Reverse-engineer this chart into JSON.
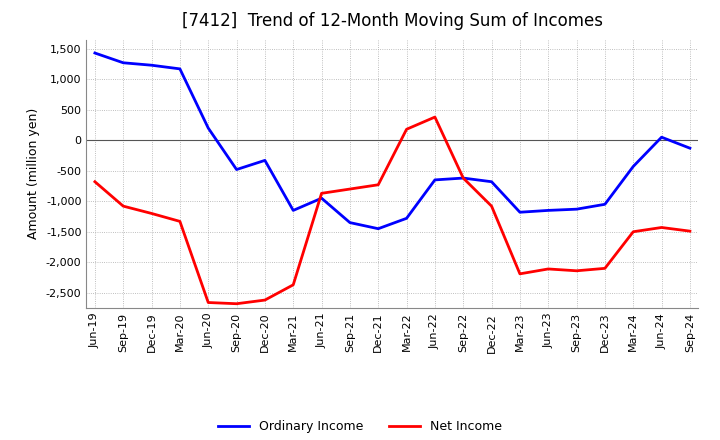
{
  "title": "[7412]  Trend of 12-Month Moving Sum of Incomes",
  "ylabel": "Amount (million yen)",
  "ylim": [
    -2750,
    1650
  ],
  "yticks": [
    -2500,
    -2000,
    -1500,
    -1000,
    -500,
    0,
    500,
    1000,
    1500
  ],
  "x_labels": [
    "Jun-19",
    "Sep-19",
    "Dec-19",
    "Mar-20",
    "Jun-20",
    "Sep-20",
    "Dec-20",
    "Mar-21",
    "Jun-21",
    "Sep-21",
    "Dec-21",
    "Mar-22",
    "Jun-22",
    "Sep-22",
    "Dec-22",
    "Mar-23",
    "Jun-23",
    "Sep-23",
    "Dec-23",
    "Mar-24",
    "Jun-24",
    "Sep-24"
  ],
  "ordinary_income": [
    1430,
    1270,
    1230,
    1170,
    200,
    -480,
    -330,
    -1150,
    -950,
    -1350,
    -1450,
    -1280,
    -650,
    -620,
    -680,
    -1180,
    -1150,
    -1130,
    -1050,
    -430,
    50,
    -130
  ],
  "net_income": [
    -680,
    -1080,
    -1200,
    -1330,
    -2660,
    -2680,
    -2620,
    -2370,
    -870,
    -800,
    -730,
    180,
    380,
    -620,
    -1080,
    -2190,
    -2110,
    -2140,
    -2100,
    -1500,
    -1430,
    -1490
  ],
  "ordinary_color": "#0000ff",
  "net_color": "#ff0000",
  "grid_color": "#aaaaaa",
  "background_color": "#ffffff",
  "title_fontsize": 12,
  "label_fontsize": 9,
  "tick_fontsize": 8,
  "legend_fontsize": 9
}
